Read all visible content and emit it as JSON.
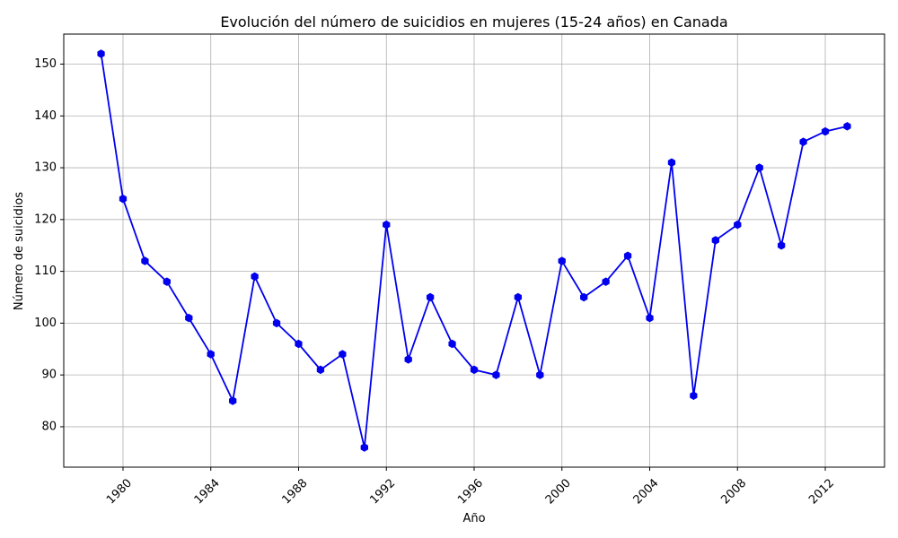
{
  "chart_data": {
    "type": "line",
    "title": "Evolución del número de suicidios en mujeres (15-24 años) en Canada",
    "xlabel": "Año",
    "ylabel": "Número de suicidios",
    "x": [
      1979,
      1980,
      1981,
      1982,
      1983,
      1984,
      1985,
      1986,
      1987,
      1988,
      1989,
      1990,
      1991,
      1992,
      1993,
      1994,
      1995,
      1996,
      1997,
      1998,
      1999,
      2000,
      2001,
      2002,
      2003,
      2004,
      2005,
      2006,
      2007,
      2008,
      2009,
      2010,
      2011,
      2012,
      2013
    ],
    "series": [
      {
        "values": [
          152,
          124,
          112,
          108,
          101,
          94,
          85,
          109,
          100,
          96,
          91,
          94,
          76,
          119,
          93,
          105,
          96,
          91,
          90,
          105,
          90,
          112,
          105,
          108,
          113,
          101,
          131,
          86,
          116,
          119,
          130,
          115,
          135,
          137,
          138
        ],
        "color": "#0000ee",
        "marker": "hexagon"
      }
    ],
    "xlim": [
      1977.3,
      2014.7
    ],
    "ylim": [
      72.2,
      155.8
    ],
    "xticks": [
      "1980",
      "1984",
      "1988",
      "1992",
      "1996",
      "2000",
      "2004",
      "2008",
      "2012"
    ],
    "yticks": [
      "80",
      "90",
      "100",
      "110",
      "120",
      "130",
      "140",
      "150"
    ],
    "grid": true,
    "xtick_rotation_deg": 45
  }
}
